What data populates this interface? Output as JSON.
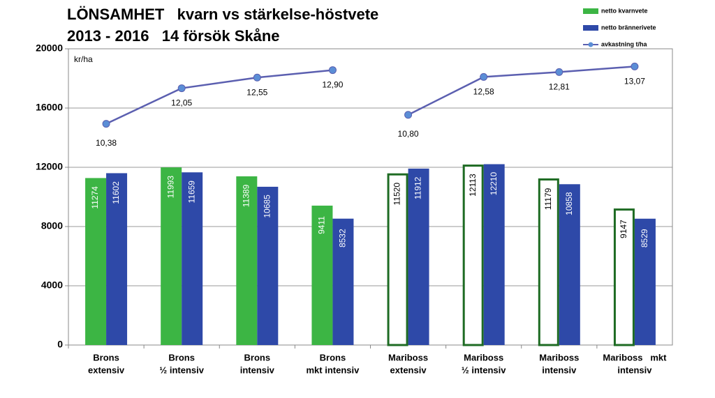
{
  "chart_data": {
    "type": "bar-line",
    "title": "LÖNSAMHET   kvarn vs stärkelse-höstvete",
    "subtitle": "2013 - 2016   14 försök Skåne",
    "y_label": "kr/ha",
    "categories": [
      [
        "Brons",
        "extensiv"
      ],
      [
        "Brons",
        "½ intensiv"
      ],
      [
        "Brons",
        "intensiv"
      ],
      [
        "Brons",
        "mkt intensiv"
      ],
      [
        "Mariboss",
        "extensiv"
      ],
      [
        "Mariboss",
        "½ intensiv"
      ],
      [
        "Mariboss",
        "intensiv"
      ],
      [
        "Mariboss   mkt",
        "intensiv"
      ]
    ],
    "series": [
      {
        "name": "netto kvarnvete",
        "color": "#3cb544",
        "outline_color": "#1e6b23",
        "hollow": [
          false,
          false,
          false,
          false,
          true,
          true,
          true,
          true
        ],
        "values": [
          11274,
          11993,
          11389,
          9411,
          11520,
          12113,
          11179,
          9147
        ]
      },
      {
        "name": "netto brännerivete",
        "color": "#2e49a8",
        "values": [
          11602,
          11659,
          10685,
          8532,
          11912,
          12210,
          10858,
          8529
        ]
      },
      {
        "name": "avkastning t/ha",
        "color": "#5b5fb0",
        "marker_color": "#5b8ed6",
        "axis": "y2",
        "break_before": 4,
        "values": [
          10.38,
          12.05,
          12.55,
          12.9,
          10.8,
          12.58,
          12.81,
          13.07
        ],
        "value_labels": [
          "10,38",
          "12,05",
          "12,55",
          "12,90",
          "10,80",
          "12,58",
          "12,81",
          "13,07"
        ]
      }
    ],
    "ylim": [
      0,
      20000
    ],
    "yticks": [
      0,
      4000,
      8000,
      12000,
      16000,
      20000
    ],
    "y2lim": [
      0,
      13.9
    ],
    "grid": true,
    "legend": "top-right"
  }
}
